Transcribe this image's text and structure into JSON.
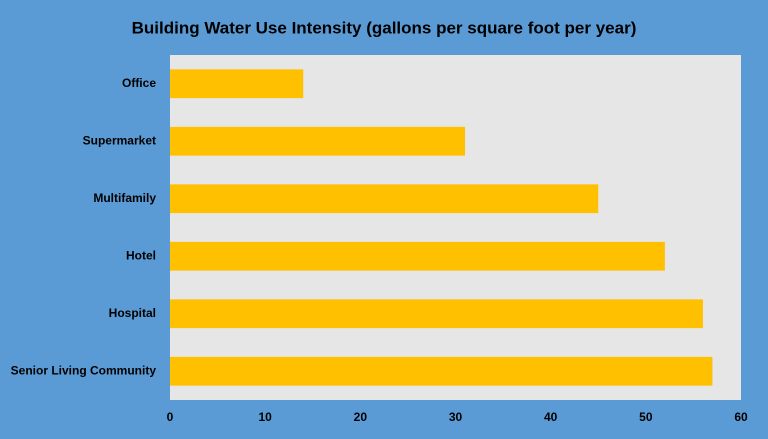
{
  "chart_data": {
    "type": "hbar",
    "title": "Building Water Use Intensity (gallons per square foot per year)",
    "categories": [
      "Office",
      "Supermarket",
      "Multifamily",
      "Hotel",
      "Hospital",
      "Senior Living Community"
    ],
    "values": [
      14,
      31,
      45,
      52,
      56,
      57
    ],
    "color": "#ffc000",
    "xlim": [
      0,
      60
    ],
    "xticks": [
      0,
      10,
      20,
      30,
      40,
      50,
      60
    ],
    "grid": false,
    "background": "#5b9bd5",
    "plot_background": "#e7e6e6"
  }
}
